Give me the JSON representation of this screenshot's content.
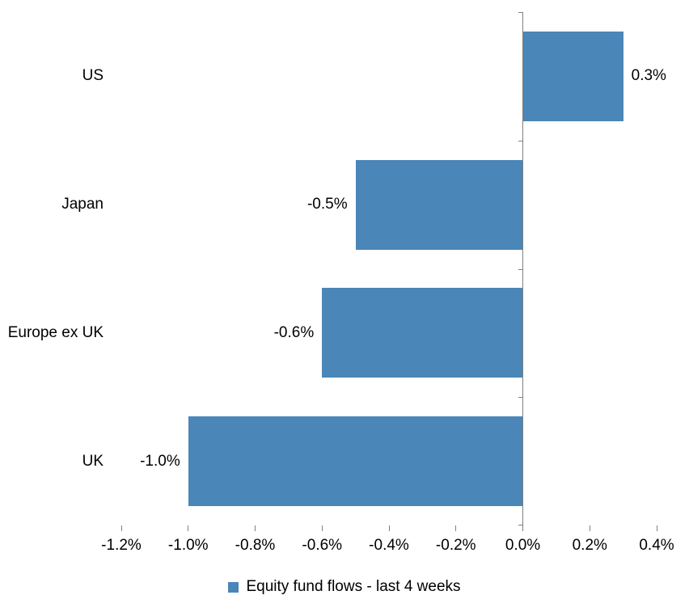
{
  "chart_data": {
    "type": "bar",
    "orientation": "horizontal",
    "title": "",
    "xlabel": "",
    "ylabel": "",
    "categories": [
      "US",
      "Japan",
      "Europe ex UK",
      "UK"
    ],
    "values": [
      0.3,
      -0.5,
      -0.6,
      -1.0
    ],
    "data_labels": [
      "0.3%",
      "-0.5%",
      "-0.6%",
      "-1.0%"
    ],
    "x_ticks": [
      -1.2,
      -1.0,
      -0.8,
      -0.6,
      -0.4,
      -0.2,
      0.0,
      0.2,
      0.4
    ],
    "x_tick_labels": [
      "-1.2%",
      "-1.0%",
      "-0.8%",
      "-0.6%",
      "-0.4%",
      "-0.2%",
      "0.0%",
      "0.2%",
      "0.4%"
    ],
    "xlim": [
      -1.2,
      0.4
    ],
    "grid": false,
    "legend": "Equity fund flows - last 4 weeks",
    "legend_position": "bottom",
    "bar_color": "#4a86b8",
    "axis_color": "#808080"
  }
}
